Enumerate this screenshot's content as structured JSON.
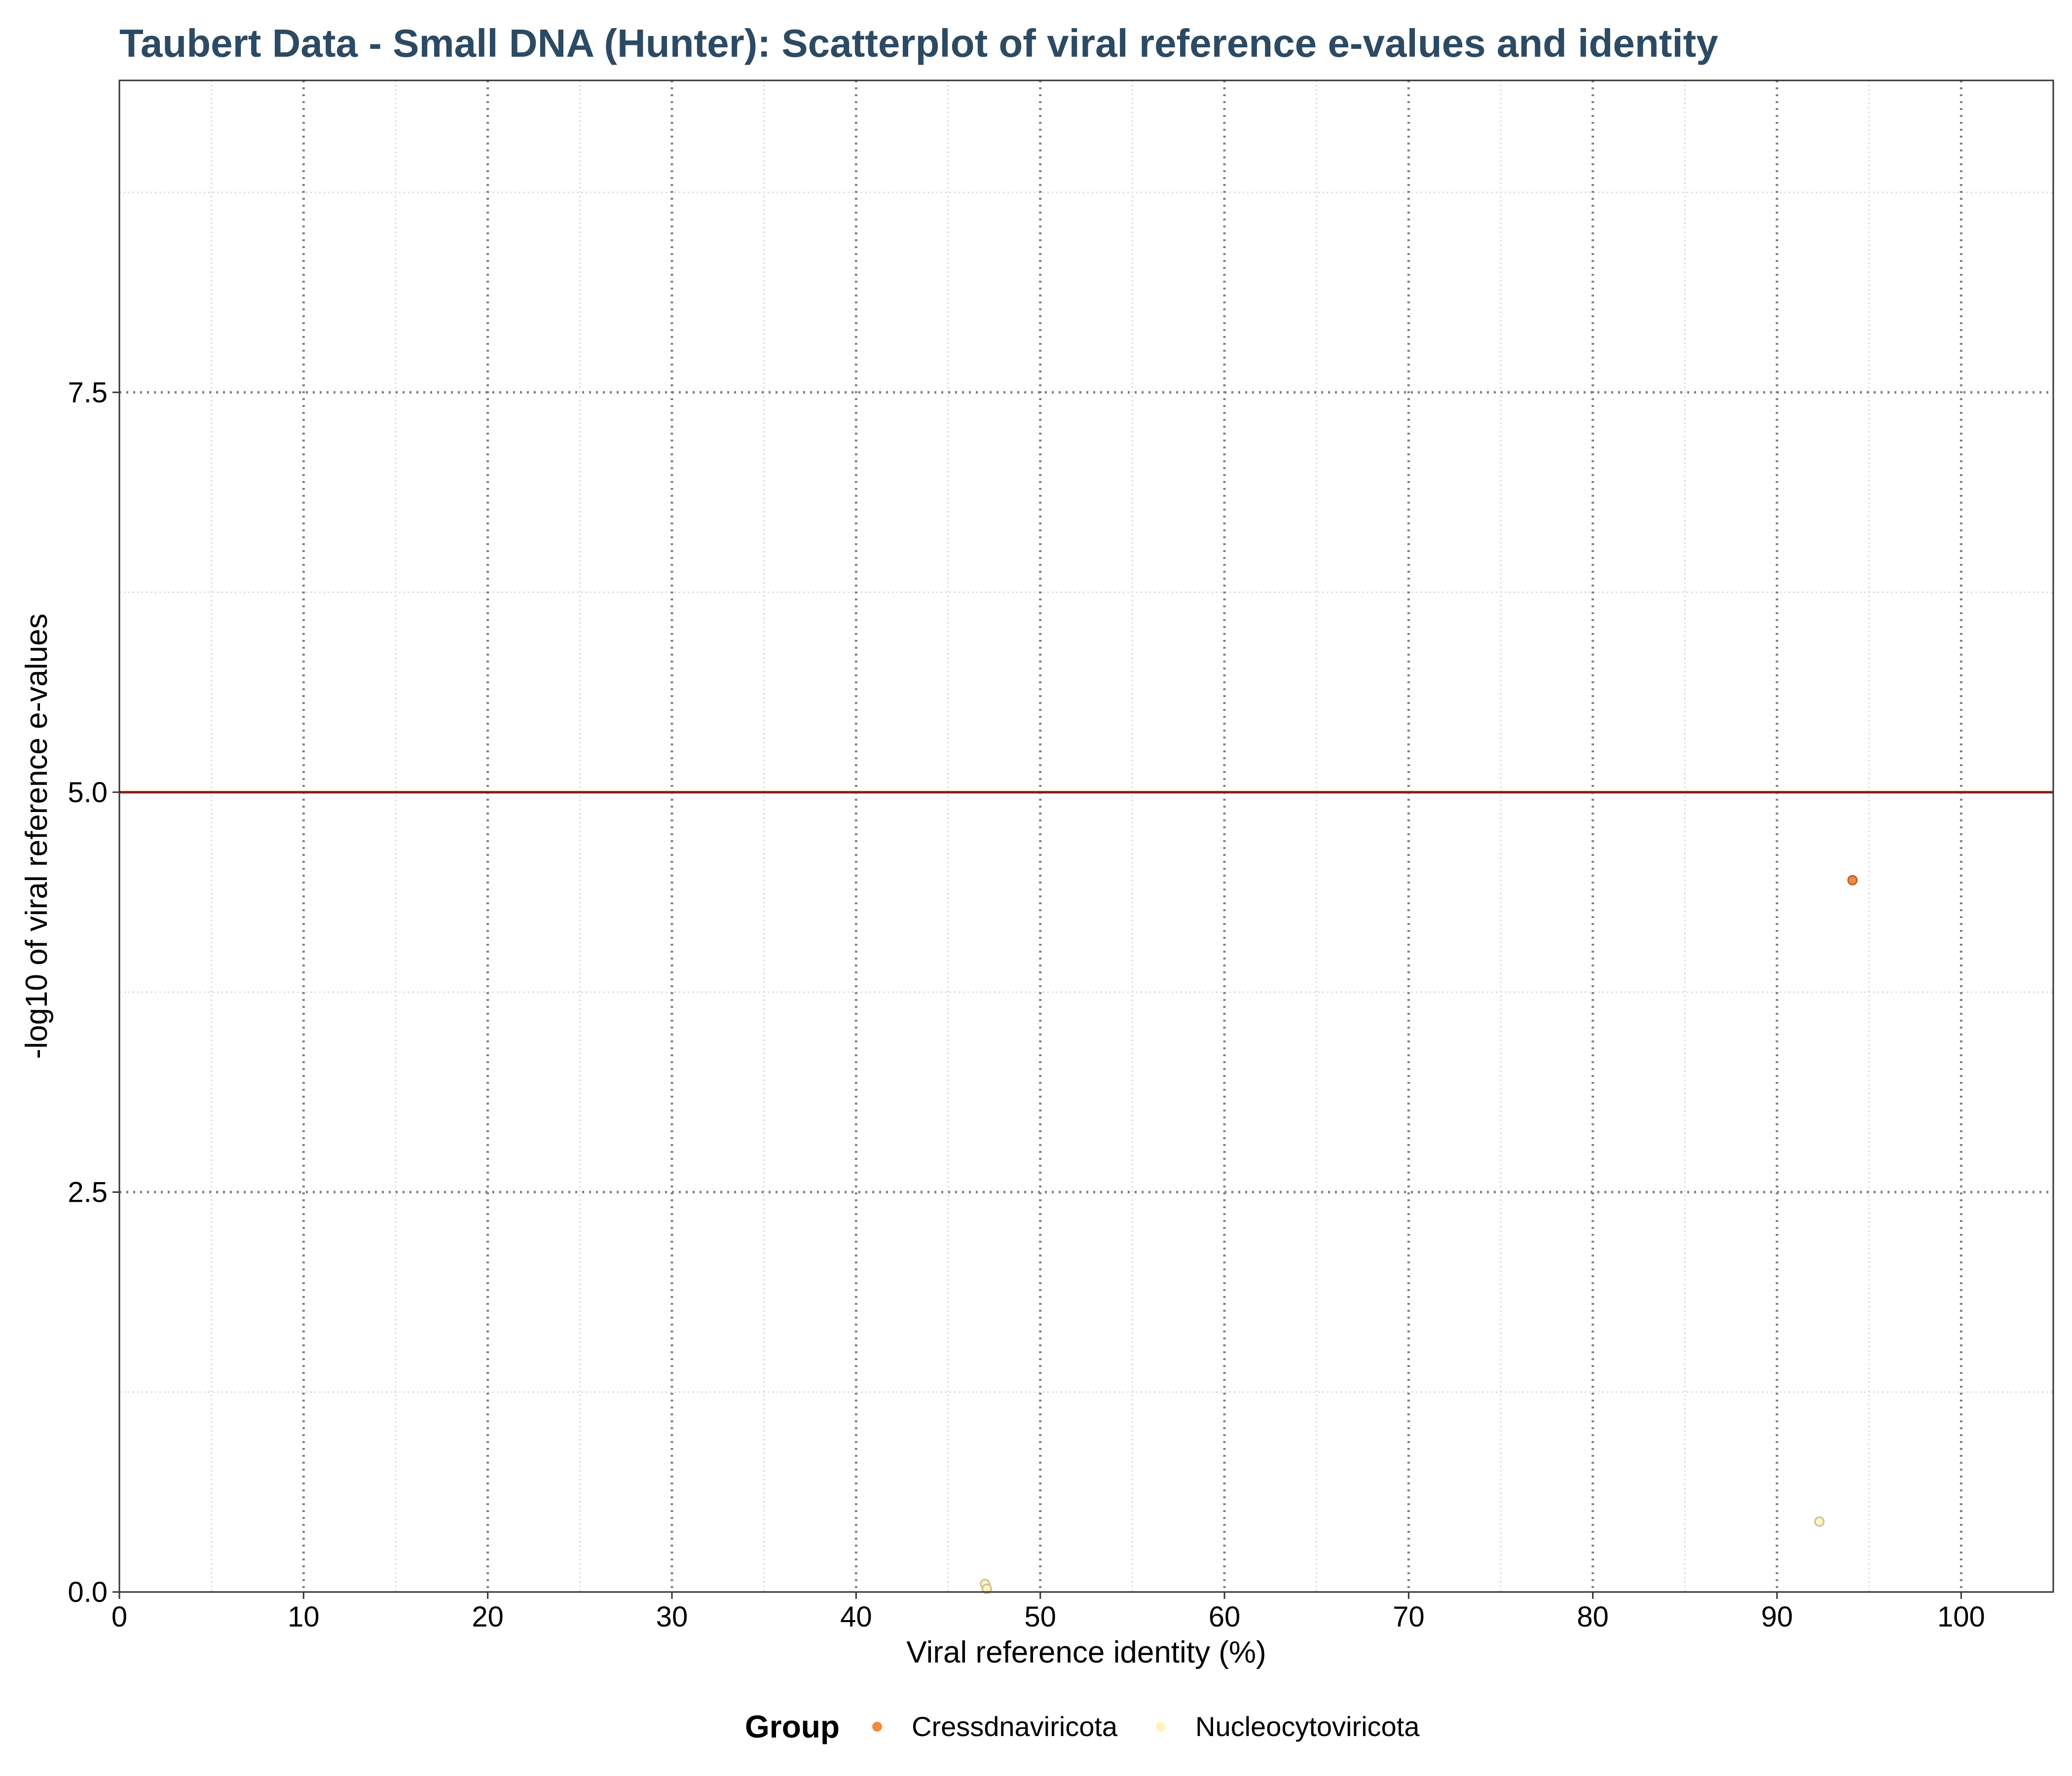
{
  "chart_data": {
    "type": "scatter",
    "title": "Taubert Data - Small DNA (Hunter): Scatterplot of viral reference e-values and identity",
    "xlabel": "Viral reference identity (%)",
    "ylabel": "-log10 of viral reference e-values",
    "xlim": [
      0,
      105
    ],
    "ylim": [
      0,
      9.45
    ],
    "x_ticks": [
      0,
      10,
      20,
      30,
      40,
      50,
      60,
      70,
      80,
      90,
      100
    ],
    "x_tick_labels": [
      "0",
      "10",
      "20",
      "30",
      "40",
      "50",
      "60",
      "70",
      "80",
      "90",
      "100"
    ],
    "y_ticks": [
      0,
      2.5,
      5,
      7.5
    ],
    "y_tick_labels": [
      "0.0",
      "2.5",
      "5.0",
      "7.5"
    ],
    "reference_line": {
      "axis": "y",
      "value": 5.0,
      "color": "#8B1A1A"
    },
    "legend": {
      "title": "Group",
      "position": "bottom"
    },
    "series": [
      {
        "name": "Cressdnaviricota",
        "color": "#F08A3E",
        "points": [
          {
            "x": 94.1,
            "y": 4.45
          }
        ]
      },
      {
        "name": "Nucleocytoviricota",
        "color": "#FFF2BF",
        "points": [
          {
            "x": 47.0,
            "y": 0.05
          },
          {
            "x": 47.1,
            "y": 0.02
          },
          {
            "x": 92.3,
            "y": 0.44
          }
        ]
      }
    ],
    "title_color": "#2C4A63"
  }
}
